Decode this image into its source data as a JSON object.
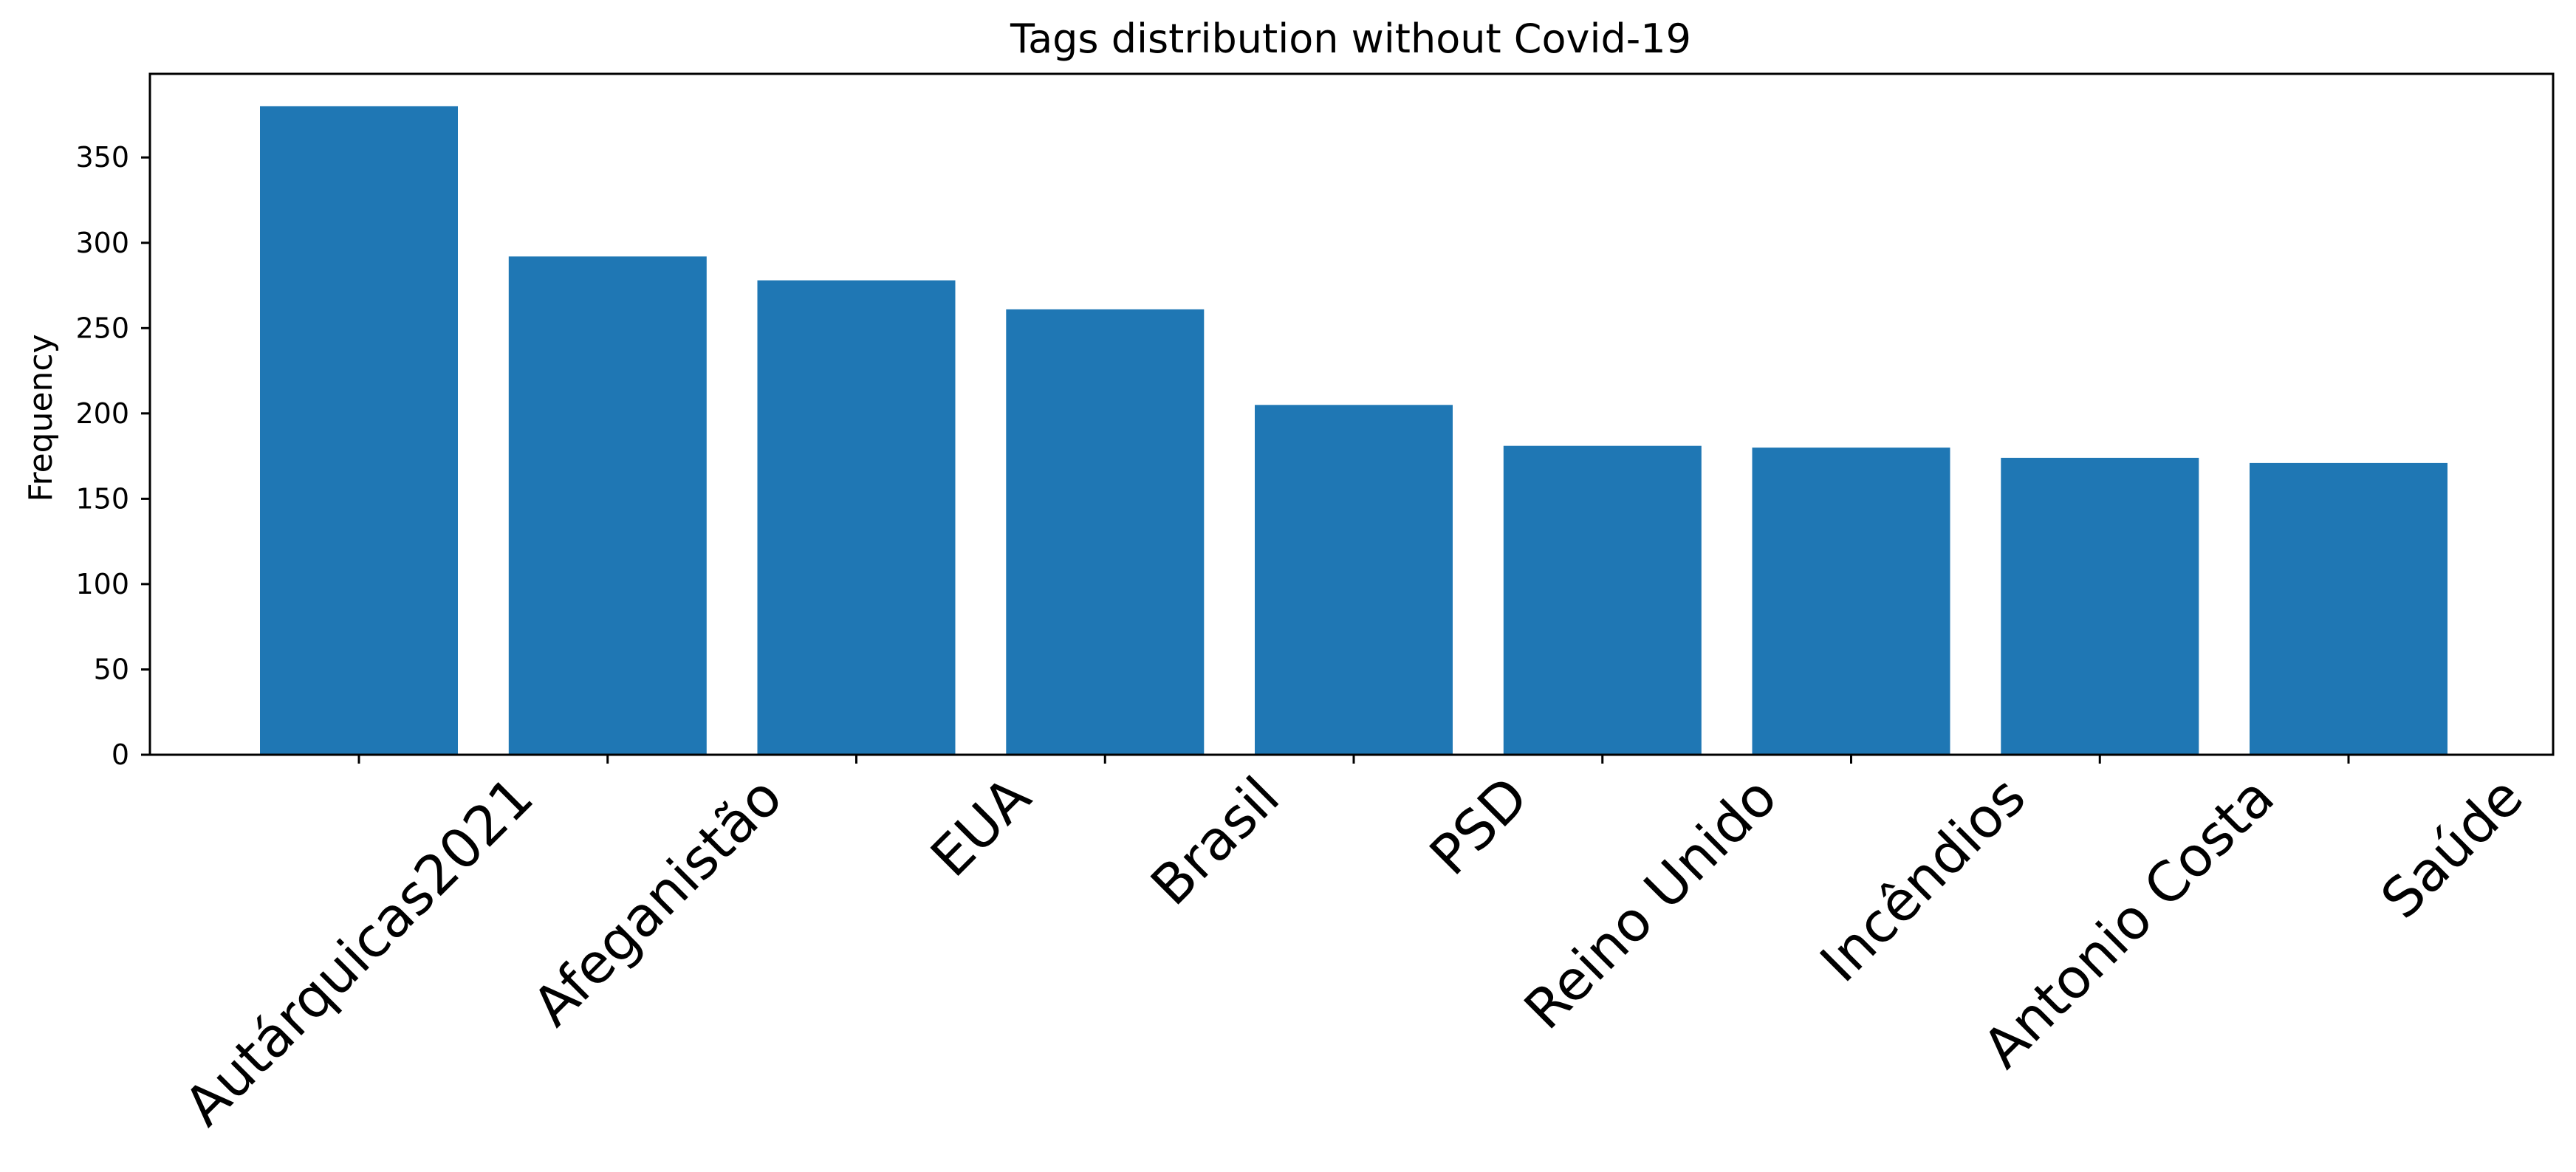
{
  "chart_data": {
    "type": "bar",
    "title": "Tags distribution without Covid-19",
    "xlabel": "",
    "ylabel": "Frequency",
    "categories": [
      "Autárquicas2021",
      "Afeganistão",
      "EUA",
      "Brasil",
      "PSD",
      "Reino Unido",
      "Incêndios",
      "Antonio Costa",
      "Saúde"
    ],
    "values": [
      380,
      292,
      278,
      261,
      205,
      181,
      180,
      174,
      171
    ],
    "ylim": [
      0,
      399
    ],
    "yticks": [
      0,
      50,
      100,
      150,
      200,
      250,
      300,
      350
    ],
    "bar_color": "#1f77b4",
    "grid": false,
    "legend": "none"
  }
}
